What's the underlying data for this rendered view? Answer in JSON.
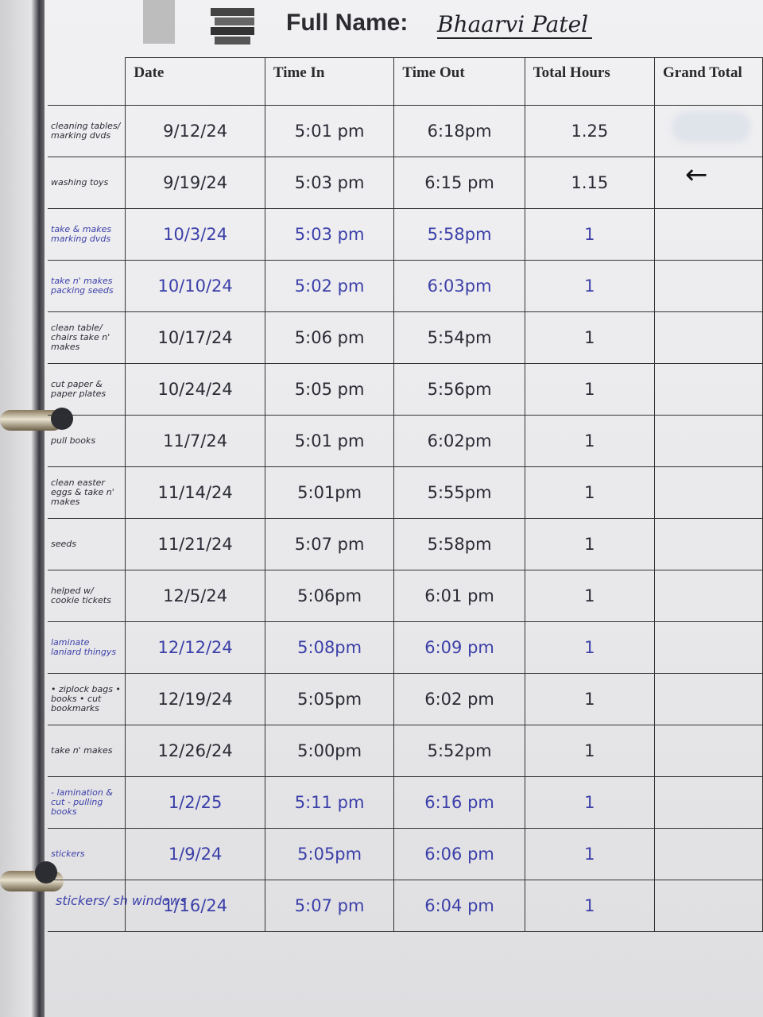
{
  "header": {
    "label": "Full Name:",
    "name": "Bhaarvi Patel"
  },
  "columns": [
    "Date",
    "Time In",
    "Time Out",
    "Total Hours",
    "Grand Total"
  ],
  "colors": {
    "black_ink": "#2a2a35",
    "blue_ink": "#3b3fa8"
  },
  "rows": [
    {
      "note": "cleaning tables/ marking dvds",
      "date": "9/12/24",
      "in": "5:01 pm",
      "out": "6:18pm",
      "total": "1.25",
      "ink": "#2a2a35"
    },
    {
      "note": "washing toys",
      "date": "9/19/24",
      "in": "5:03 pm",
      "out": "6:15 pm",
      "total": "1.15",
      "ink": "#2a2a35"
    },
    {
      "note": "take & makes marking dvds",
      "date": "10/3/24",
      "in": "5:03 pm",
      "out": "5:58pm",
      "total": "1",
      "ink": "#3b3fa8"
    },
    {
      "note": "take n' makes packing seeds",
      "date": "10/10/24",
      "in": "5:02 pm",
      "out": "6:03pm",
      "total": "1",
      "ink": "#3b3fa8"
    },
    {
      "note": "clean table/ chairs take n' makes",
      "date": "10/17/24",
      "in": "5:06 pm",
      "out": "5:54pm",
      "total": "1",
      "ink": "#2a2a35"
    },
    {
      "note": "cut paper & paper plates",
      "date": "10/24/24",
      "in": "5:05 pm",
      "out": "5:56pm",
      "total": "1",
      "ink": "#2a2a35"
    },
    {
      "note": "pull books",
      "date": "11/7/24",
      "in": "5:01 pm",
      "out": "6:02pm",
      "total": "1",
      "ink": "#2a2a35"
    },
    {
      "note": "clean easter eggs & take n' makes",
      "date": "11/14/24",
      "in": "5:01pm",
      "out": "5:55pm",
      "total": "1",
      "ink": "#2a2a35"
    },
    {
      "note": "seeds",
      "date": "11/21/24",
      "in": "5:07 pm",
      "out": "5:58pm",
      "total": "1",
      "ink": "#2a2a35"
    },
    {
      "note": "helped w/ cookie tickets",
      "date": "12/5/24",
      "in": "5:06pm",
      "out": "6:01 pm",
      "total": "1",
      "ink": "#2a2a35"
    },
    {
      "note": "laminate laniard thingys",
      "date": "12/12/24",
      "in": "5:08pm",
      "out": "6:09 pm",
      "total": "1",
      "ink": "#3b3fa8"
    },
    {
      "note": "• ziplock bags • books • cut bookmarks",
      "date": "12/19/24",
      "in": "5:05pm",
      "out": "6:02 pm",
      "total": "1",
      "ink": "#2a2a35"
    },
    {
      "note": "take n' makes",
      "date": "12/26/24",
      "in": "5:00pm",
      "out": "5:52pm",
      "total": "1",
      "ink": "#2a2a35"
    },
    {
      "note": "- lamination & cut - pulling books",
      "date": "1/2/25",
      "in": "5:11 pm",
      "out": "6:16 pm",
      "total": "1",
      "ink": "#3b3fa8"
    },
    {
      "note": "stickers",
      "date": "1/9/24",
      "in": "5:05pm",
      "out": "6:06 pm",
      "total": "1",
      "ink": "#3b3fa8"
    },
    {
      "note": "",
      "date": "1/16/24",
      "in": "5:07 pm",
      "out": "6:04 pm",
      "total": "1",
      "ink": "#3b3fa8"
    }
  ],
  "bottom_note": "stickers/ sh windows",
  "arrow": "←"
}
